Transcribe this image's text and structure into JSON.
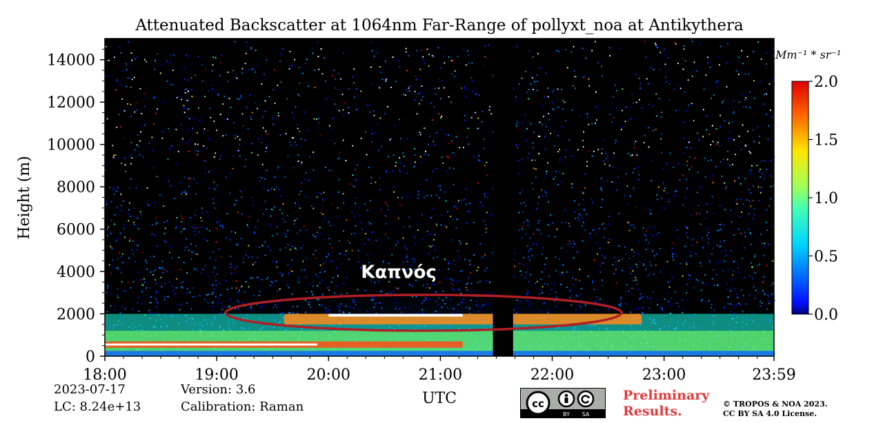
{
  "chart_data": {
    "type": "heatmap",
    "title": "Attenuated Backscatter at 1064nm Far-Range of pollyxt_noa at Antikythera",
    "xlabel": "UTC",
    "ylabel": "Height (m)",
    "x_tick_labels": [
      "18:00",
      "19:00",
      "20:00",
      "21:00",
      "22:00",
      "23:00",
      "23:59"
    ],
    "x_ticks_hours": [
      18,
      19,
      20,
      21,
      22,
      23,
      23.983
    ],
    "xlim_hours": [
      18,
      23.983
    ],
    "y_tick_labels": [
      "0",
      "2000",
      "4000",
      "6000",
      "8000",
      "10000",
      "12000",
      "14000"
    ],
    "y_ticks": [
      0,
      2000,
      4000,
      6000,
      8000,
      10000,
      12000,
      14000
    ],
    "ylim": [
      0,
      15000
    ],
    "colorbar": {
      "unit_label": "Mm⁻¹ * sr⁻¹",
      "ticks": [
        0.0,
        0.5,
        1.0,
        1.5,
        2.0
      ],
      "tick_labels": [
        "0.0",
        "0.5",
        "1.0",
        "1.5",
        "2.0"
      ],
      "range": [
        0,
        2.0
      ],
      "colormap": "jet"
    },
    "data_gap_hours": [
      21.47,
      21.65
    ],
    "layers": [
      {
        "name": "aerosol layer",
        "x_start": 18.0,
        "x_end": 23.98,
        "height_min": 0,
        "height_max": 2000,
        "value_approx": 0.8
      },
      {
        "name": "elevated layer",
        "x_start": 19.6,
        "x_end": 22.8,
        "height_min": 1500,
        "height_max": 2000,
        "value_approx": 2.0
      },
      {
        "name": "lower layer",
        "x_start": 18.0,
        "x_end": 21.2,
        "height_min": 400,
        "height_max": 700,
        "value_approx": 2.0
      }
    ],
    "annotation": {
      "text": "Καπνός",
      "x_center_hours": 20.85,
      "height_center": 2050,
      "shape": "ellipse",
      "color": "#b01f24"
    }
  },
  "footer": {
    "date": "2023-07-17",
    "lc": "LC: 8.24e+13",
    "version": "Version: 3.6",
    "calibration": "Calibration: Raman",
    "preliminary_line1": "Preliminary",
    "preliminary_line2": "Results.",
    "copyright_line1": "© TROPOS & NOA 2023.",
    "copyright_line2": "CC BY SA 4.0 License.",
    "license_by": "BY",
    "license_sa": "SA"
  }
}
